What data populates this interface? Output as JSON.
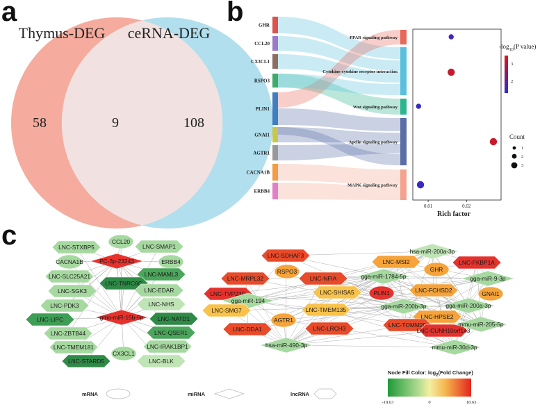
{
  "panel_letters": {
    "a": "a",
    "b": "b",
    "c": "c"
  },
  "venn": {
    "left_label": "Thymus-DEG",
    "right_label": "ceRNA-DEG",
    "left_only": "58",
    "overlap": "9",
    "right_only": "108",
    "left_color": "#f4a698",
    "right_color": "#a9dcec"
  },
  "sankey": {
    "genes": [
      "GHR",
      "CCL20",
      "CX3CL1",
      "RSPO3",
      "PLIN1",
      "GNAI1",
      "AGTR1",
      "CACNA1B",
      "ERBB4"
    ],
    "gene_colors": [
      "#d9534f",
      "#9b79c9",
      "#8c6e63",
      "#3faa6a",
      "#3f7fbf",
      "#c8c64c",
      "#999999",
      "#f39c47",
      "#e37fc6"
    ],
    "pathways": [
      "PPAR signaling pathway",
      "Cytokine-cytokine receptor interaction",
      "Wnt signaling pathway",
      "Apelin signaling pathway",
      "MAPK signaling pathway"
    ],
    "pathway_colors": [
      "#e8685a",
      "#5bc0de",
      "#2cb58f",
      "#5a6fa8",
      "#f2a48f"
    ]
  },
  "chart_data": {
    "type": "scatter",
    "title": "",
    "xlabel": "Rich factor",
    "ylabel": "",
    "xlim": [
      0.006,
      0.029
    ],
    "xticks": [
      "0.01",
      "0.02"
    ],
    "xtick_values": [
      0.01,
      0.02
    ],
    "categories": [
      "PPAR signaling pathway",
      "Cytokine-cytokine receptor interaction",
      "Wnt signaling pathway",
      "Apelin signaling pathway",
      "MAPK signaling pathway"
    ],
    "points": [
      {
        "pathway": "PPAR signaling pathway",
        "x": 0.016,
        "count": 1,
        "neg_log10_p": 1.8
      },
      {
        "pathway": "Cytokine-cytokine receptor interaction",
        "x": 0.016,
        "count": 2,
        "neg_log10_p": 3.3
      },
      {
        "pathway": "Wnt signaling pathway",
        "x": 0.0075,
        "count": 1,
        "neg_log10_p": 1.6
      },
      {
        "pathway": "Apelin signaling pathway",
        "x": 0.027,
        "count": 2,
        "neg_log10_p": 3.3
      },
      {
        "pathway": "MAPK signaling pathway",
        "x": 0.008,
        "count": 2,
        "neg_log10_p": 1.7
      }
    ],
    "color_legend": {
      "title_prefix": "-log",
      "title_sub": "10",
      "title_suffix": "(P value)",
      "ticks": [
        "3",
        "2"
      ]
    },
    "size_legend": {
      "title": "Count",
      "ticks": [
        "1",
        "2",
        "3"
      ]
    }
  },
  "network": {
    "left_cluster": [
      {
        "label": "LNC-STXBP5",
        "shape": "hexagon",
        "color": "#a6d9a0"
      },
      {
        "label": "CCL20",
        "shape": "ellipse",
        "color": "#a6d9a0"
      },
      {
        "label": "LNC-SMAP1",
        "shape": "hexagon",
        "color": "#a6d9a0"
      },
      {
        "label": "CACNA1B",
        "shape": "ellipse",
        "color": "#a6d9a0"
      },
      {
        "label": "PC-3p-23243",
        "shape": "diamond",
        "color": "#e5322d"
      },
      {
        "label": "ERBB4",
        "shape": "ellipse",
        "color": "#a6d9a0"
      },
      {
        "label": "LNC-MAML3",
        "shape": "hexagon",
        "color": "#4aa65a"
      },
      {
        "label": "LNC-SLC25A21",
        "shape": "hexagon",
        "color": "#a6d9a0"
      },
      {
        "label": "LNC-TNRC6C",
        "shape": "hexagon",
        "color": "#2f8a47"
      },
      {
        "label": "LNC-SGK3",
        "shape": "hexagon",
        "color": "#a6d9a0"
      },
      {
        "label": "LNC-EDAR",
        "shape": "hexagon",
        "color": "#a6d9a0"
      },
      {
        "label": "LNC-PDK3",
        "shape": "hexagon",
        "color": "#a6d9a0"
      },
      {
        "label": "LNC-NHS",
        "shape": "hexagon",
        "color": "#bfe4b5"
      },
      {
        "label": "LNC-LIPC",
        "shape": "hexagon",
        "color": "#3f9e55"
      },
      {
        "label": "gmo-miR-15b-5p",
        "shape": "diamond",
        "color": "#e5322d"
      },
      {
        "label": "LNC-NATD1",
        "shape": "hexagon",
        "color": "#2f8a47"
      },
      {
        "label": "LNC-ZBTB44",
        "shape": "hexagon",
        "color": "#a6d9a0"
      },
      {
        "label": "LNC-QSER1",
        "shape": "hexagon",
        "color": "#4aa65a"
      },
      {
        "label": "LNC-TMEM181",
        "shape": "hexagon",
        "color": "#a6d9a0"
      },
      {
        "label": "CX3CL1",
        "shape": "ellipse",
        "color": "#a6d9a0"
      },
      {
        "label": "LNC-IRAK1BP1",
        "shape": "hexagon",
        "color": "#a6d9a0"
      },
      {
        "label": "LNC-STARD5",
        "shape": "hexagon",
        "color": "#2f8a47"
      },
      {
        "label": "LNC-BLK",
        "shape": "hexagon",
        "color": "#bfe4b5"
      }
    ],
    "right_cluster": [
      {
        "label": "hsa-miR-200a-3p",
        "shape": "diamond",
        "color": "#bfe4b5"
      },
      {
        "label": "LNC-SDHAF3",
        "shape": "hexagon",
        "color": "#e84a2a"
      },
      {
        "label": "LNC-MSI2",
        "shape": "hexagon",
        "color": "#f5a33a"
      },
      {
        "label": "GHR",
        "shape": "ellipse",
        "color": "#f5a33a"
      },
      {
        "label": "LNC-FKBP1A",
        "shape": "hexagon",
        "color": "#e5322d"
      },
      {
        "label": "LNC-MRPL32",
        "shape": "hexagon",
        "color": "#e84a2a"
      },
      {
        "label": "RSPO3",
        "shape": "ellipse",
        "color": "#f5a33a"
      },
      {
        "label": "LNC-NFIA",
        "shape": "hexagon",
        "color": "#e84a2a"
      },
      {
        "label": "gga-miR-1784-5p",
        "shape": "diamond",
        "color": "#a6d9a0"
      },
      {
        "label": "gga-miR-9-3p",
        "shape": "diamond",
        "color": "#a6d9a0"
      },
      {
        "label": "LNC-TVP23C",
        "shape": "hexagon",
        "color": "#e5322d"
      },
      {
        "label": "LNC-FCHSD2",
        "shape": "hexagon",
        "color": "#f5a33a"
      },
      {
        "label": "gga-miR-194",
        "shape": "diamond",
        "color": "#a6d9a0"
      },
      {
        "label": "LNC-SHISA5",
        "shape": "hexagon",
        "color": "#f9c24a"
      },
      {
        "label": "PLIN1",
        "shape": "ellipse",
        "color": "#e5322d"
      },
      {
        "label": "GNAI1",
        "shape": "ellipse",
        "color": "#f5a33a"
      },
      {
        "label": "LNC-SMG7",
        "shape": "hexagon",
        "color": "#f9c24a"
      },
      {
        "label": "LNC-TMEM135",
        "shape": "hexagon",
        "color": "#f9c24a"
      },
      {
        "label": "gga-miR-200b-3p",
        "shape": "diamond",
        "color": "#a6d9a0"
      },
      {
        "label": "gga-miR-200a-3p",
        "shape": "diamond",
        "color": "#a6d9a0"
      },
      {
        "label": "AGTR1",
        "shape": "ellipse",
        "color": "#f5a33a"
      },
      {
        "label": "LNC-HPSE2",
        "shape": "hexagon",
        "color": "#f5a33a"
      },
      {
        "label": "LNC-TOMM20",
        "shape": "hexagon",
        "color": "#e84a2a"
      },
      {
        "label": "LNC-DDA1",
        "shape": "hexagon",
        "color": "#e84a2a"
      },
      {
        "label": "LNC-LRCH3",
        "shape": "hexagon",
        "color": "#e84a2a"
      },
      {
        "label": "LNC-CUNH10orf143",
        "shape": "hexagon",
        "color": "#e5322d"
      },
      {
        "label": "mmu-miR-205-5p",
        "shape": "diamond",
        "color": "#a6d9a0"
      },
      {
        "label": "mmu-miR-30d-3p",
        "shape": "diamond",
        "color": "#a6d9a0"
      },
      {
        "label": "hsa-miR-490-3p",
        "shape": "diamond",
        "color": "#a6d9a0"
      }
    ],
    "shape_key": {
      "mrna": "mRNA",
      "mirna": "miRNA",
      "lncrna": "lncRNA"
    },
    "color_key": {
      "title_prefix": "Node Fill Color:  log",
      "title_sub": "2",
      "title_suffix": "(Fold Change)",
      "min": "-18.63",
      "mid": "0",
      "max": "18.63"
    }
  }
}
